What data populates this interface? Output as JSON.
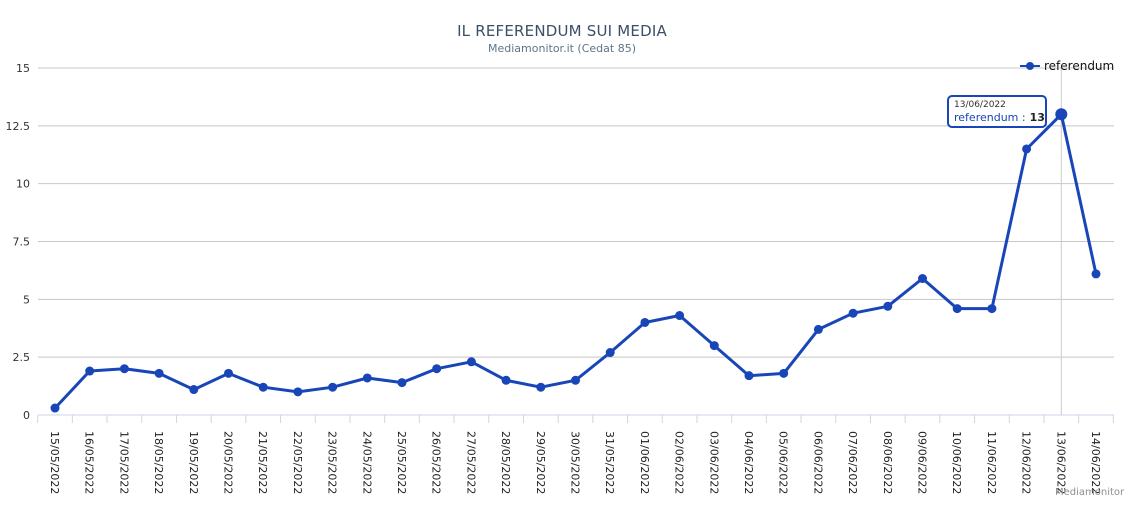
{
  "chart_data": {
    "type": "line",
    "title": "IL REFERENDUM SUI MEDIA",
    "subtitle": "Mediamonitor.it (Cedat 85)",
    "xlabel": "",
    "ylabel": "",
    "ylim": [
      0,
      15
    ],
    "y_ticks": [
      "0",
      "2.5",
      "5",
      "7.5",
      "10",
      "12.5",
      "15"
    ],
    "grid": true,
    "legend_position": "top-right",
    "categories": [
      "15/05/2022",
      "16/05/2022",
      "17/05/2022",
      "18/05/2022",
      "19/05/2022",
      "20/05/2022",
      "21/05/2022",
      "22/05/2022",
      "23/05/2022",
      "24/05/2022",
      "25/05/2022",
      "26/05/2022",
      "27/05/2022",
      "28/05/2022",
      "29/05/2022",
      "30/05/2022",
      "31/05/2022",
      "01/06/2022",
      "02/06/2022",
      "03/06/2022",
      "04/06/2022",
      "05/06/2022",
      "06/06/2022",
      "07/06/2022",
      "08/06/2022",
      "09/06/2022",
      "10/06/2022",
      "11/06/2022",
      "12/06/2022",
      "13/06/2022",
      "14/06/2022"
    ],
    "series": [
      {
        "name": "referendum",
        "color": "#1846b8",
        "values": [
          0.3,
          1.9,
          2.0,
          1.8,
          1.1,
          1.8,
          1.2,
          1.0,
          1.2,
          1.6,
          1.4,
          2.0,
          2.3,
          1.5,
          1.2,
          1.5,
          2.7,
          4.0,
          4.3,
          3.0,
          1.7,
          1.8,
          3.7,
          4.4,
          4.7,
          5.9,
          4.6,
          4.6,
          11.5,
          13.0,
          6.1
        ]
      }
    ]
  },
  "tooltip": {
    "date": "13/06/2022",
    "series_label": "referendum :",
    "value": "13",
    "highlight_index": 29
  },
  "credits": "Mediamonitor",
  "colors": {
    "series": "#1846b8",
    "grid": "#c8c8c8",
    "axis": "#ccd6eb",
    "title": "#3b4f66"
  }
}
